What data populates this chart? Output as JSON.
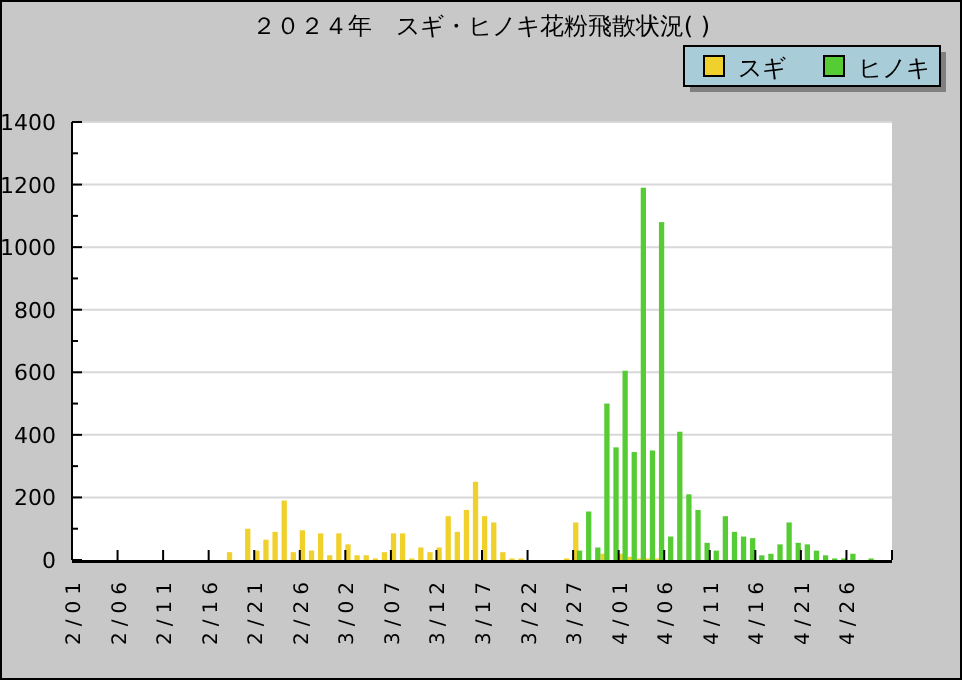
{
  "chart_data": {
    "type": "bar",
    "title": "２０２４年　スギ・ヒノキ花粉飛散状況( )",
    "categories": [
      "2/01",
      null,
      null,
      null,
      null,
      "2/06",
      null,
      null,
      null,
      null,
      "2/11",
      null,
      null,
      null,
      null,
      "2/16",
      null,
      null,
      null,
      null,
      "2/21",
      null,
      null,
      null,
      null,
      "2/26",
      null,
      null,
      null,
      null,
      "3/02",
      null,
      null,
      null,
      null,
      "3/07",
      null,
      null,
      null,
      null,
      "3/12",
      null,
      null,
      null,
      null,
      "3/17",
      null,
      null,
      null,
      null,
      "3/22",
      null,
      null,
      null,
      null,
      "3/27",
      null,
      null,
      null,
      null,
      "4/01",
      null,
      null,
      null,
      null,
      "4/06",
      null,
      null,
      null,
      null,
      "4/11",
      null,
      null,
      null,
      null,
      "4/16",
      null,
      null,
      null,
      null,
      "4/21",
      null,
      null,
      null,
      null,
      "4/26",
      null,
      null,
      null,
      null
    ],
    "series": [
      {
        "name": "スギ",
        "color": "#f0d02a",
        "values": [
          0,
          0,
          0,
          0,
          0,
          0,
          0,
          0,
          0,
          0,
          0,
          0,
          0,
          0,
          0,
          0,
          0,
          25,
          0,
          100,
          30,
          65,
          90,
          190,
          25,
          95,
          30,
          85,
          15,
          85,
          50,
          15,
          15,
          5,
          25,
          85,
          85,
          5,
          40,
          25,
          40,
          140,
          90,
          160,
          250,
          140,
          120,
          25,
          5,
          5,
          0,
          0,
          0,
          0,
          5,
          120,
          0,
          0,
          20,
          0,
          20,
          10,
          5,
          5,
          5,
          0,
          0,
          0,
          0,
          0,
          0,
          0,
          0,
          0,
          0,
          0,
          0,
          0,
          0,
          0,
          0,
          0,
          0,
          0,
          0,
          0,
          0,
          0,
          0,
          0
        ]
      },
      {
        "name": "ヒノキ",
        "color": "#55cc33",
        "values": [
          0,
          0,
          0,
          0,
          0,
          0,
          0,
          0,
          0,
          0,
          0,
          0,
          0,
          0,
          0,
          0,
          0,
          0,
          0,
          0,
          0,
          0,
          0,
          0,
          0,
          0,
          0,
          0,
          0,
          0,
          0,
          0,
          0,
          0,
          0,
          0,
          0,
          0,
          0,
          0,
          0,
          0,
          0,
          0,
          0,
          0,
          0,
          0,
          0,
          0,
          0,
          0,
          0,
          0,
          0,
          30,
          155,
          40,
          500,
          360,
          605,
          345,
          1190,
          350,
          1080,
          75,
          410,
          210,
          160,
          55,
          30,
          140,
          90,
          75,
          70,
          15,
          20,
          50,
          120,
          55,
          50,
          30,
          15,
          5,
          5,
          20,
          0,
          5,
          0,
          0
        ]
      }
    ],
    "ylim": [
      0,
      1400
    ],
    "yticks": [
      0,
      {
        "value": 100,
        "label": null
      },
      200,
      {
        "value": 300,
        "label": null
      },
      400,
      {
        "value": 500,
        "label": null
      },
      600,
      {
        "value": 700,
        "label": null
      },
      800,
      {
        "value": 900,
        "label": null
      },
      1000,
      {
        "value": 1100,
        "label": null
      },
      1200,
      {
        "value": 1300,
        "label": null
      },
      1400
    ],
    "grid": "y",
    "legend": "top right"
  }
}
